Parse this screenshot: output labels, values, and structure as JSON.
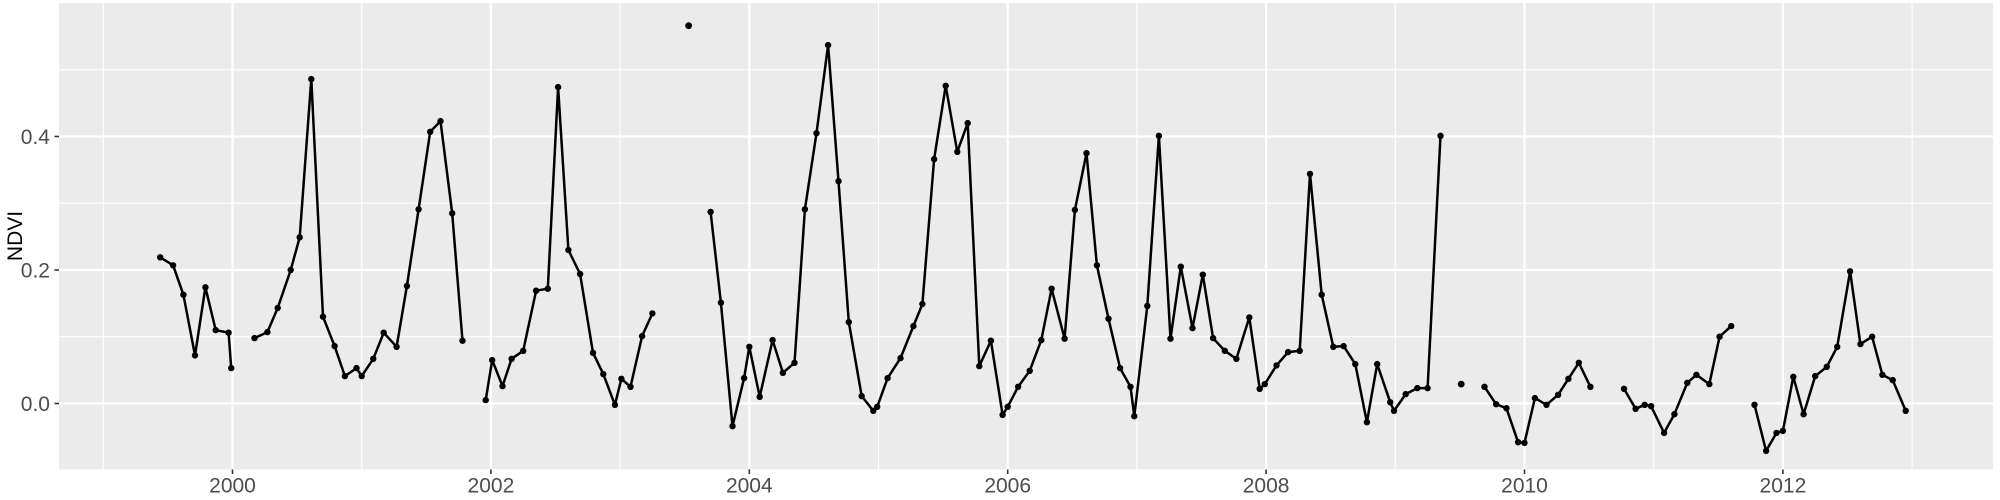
{
  "chart_data": {
    "type": "line",
    "title": "",
    "xlabel": "",
    "ylabel": "NDVI",
    "x_tick_labels": [
      "2000",
      "2002",
      "2004",
      "2006",
      "2008",
      "2010",
      "2012"
    ],
    "x_tick_values": [
      2000,
      2002,
      2004,
      2006,
      2008,
      2010,
      2012
    ],
    "x_minor_values": [
      1999,
      2001,
      2003,
      2005,
      2007,
      2009,
      2011,
      2013
    ],
    "y_tick_labels": [
      "0.0",
      "0.2",
      "0.4"
    ],
    "y_tick_values": [
      0.0,
      0.2,
      0.4
    ],
    "y_minor_values": [
      0.1,
      0.3,
      0.5
    ],
    "xlim": [
      1998.657,
      2013.626
    ],
    "ylim": [
      -0.0989,
      0.6
    ],
    "grid": true,
    "legend_position": "none",
    "point_shape": "circle",
    "series": [
      {
        "name": "NDVI",
        "segments": [
          [
            [
              1999.44,
              0.219
            ],
            [
              1999.54,
              0.207
            ],
            [
              1999.62,
              0.163
            ],
            [
              1999.71,
              0.072
            ],
            [
              1999.79,
              0.174
            ],
            [
              1999.87,
              0.11
            ],
            [
              1999.97,
              0.106
            ],
            [
              1999.99,
              0.053
            ]
          ],
          [
            [
              2000.17,
              0.098
            ],
            [
              2000.27,
              0.107
            ],
            [
              2000.35,
              0.143
            ],
            [
              2000.45,
              0.2
            ],
            [
              2000.52,
              0.249
            ],
            [
              2000.61,
              0.486
            ],
            [
              2000.7,
              0.13
            ],
            [
              2000.79,
              0.086
            ],
            [
              2000.87,
              0.041
            ],
            [
              2000.96,
              0.053
            ],
            [
              2001.0,
              0.041
            ],
            [
              2001.09,
              0.067
            ],
            [
              2001.17,
              0.106
            ],
            [
              2001.27,
              0.085
            ],
            [
              2001.35,
              0.176
            ],
            [
              2001.44,
              0.291
            ],
            [
              2001.53,
              0.407
            ],
            [
              2001.61,
              0.423
            ],
            [
              2001.7,
              0.285
            ],
            [
              2001.78,
              0.094
            ]
          ],
          [
            [
              2001.96,
              0.005
            ],
            [
              2002.01,
              0.065
            ],
            [
              2002.09,
              0.026
            ],
            [
              2002.16,
              0.067
            ],
            [
              2002.25,
              0.079
            ],
            [
              2002.35,
              0.169
            ],
            [
              2002.44,
              0.172
            ],
            [
              2002.52,
              0.474
            ],
            [
              2002.6,
              0.23
            ],
            [
              2002.69,
              0.194
            ],
            [
              2002.79,
              0.076
            ],
            [
              2002.87,
              0.044
            ],
            [
              2002.96,
              -0.002
            ],
            [
              2003.01,
              0.037
            ],
            [
              2003.08,
              0.025
            ],
            [
              2003.17,
              0.101
            ],
            [
              2003.25,
              0.135
            ]
          ],
          [
            [
              2003.7,
              0.287
            ],
            [
              2003.78,
              0.151
            ],
            [
              2003.87,
              -0.034
            ],
            [
              2003.96,
              0.038
            ],
            [
              2004.0,
              0.085
            ],
            [
              2004.08,
              0.01
            ],
            [
              2004.18,
              0.095
            ],
            [
              2004.26,
              0.046
            ],
            [
              2004.35,
              0.061
            ],
            [
              2004.43,
              0.291
            ],
            [
              2004.52,
              0.405
            ],
            [
              2004.61,
              0.537
            ],
            [
              2004.69,
              0.333
            ],
            [
              2004.77,
              0.122
            ],
            [
              2004.87,
              0.011
            ],
            [
              2004.96,
              -0.011
            ],
            [
              2004.99,
              -0.005
            ],
            [
              2005.07,
              0.038
            ],
            [
              2005.17,
              0.068
            ],
            [
              2005.27,
              0.116
            ],
            [
              2005.34,
              0.149
            ],
            [
              2005.43,
              0.366
            ],
            [
              2005.52,
              0.476
            ],
            [
              2005.61,
              0.377
            ],
            [
              2005.69,
              0.42
            ],
            [
              2005.78,
              0.056
            ],
            [
              2005.87,
              0.094
            ],
            [
              2005.96,
              -0.017
            ],
            [
              2006.0,
              -0.005
            ],
            [
              2006.08,
              0.025
            ],
            [
              2006.17,
              0.049
            ],
            [
              2006.26,
              0.095
            ],
            [
              2006.34,
              0.172
            ],
            [
              2006.44,
              0.097
            ],
            [
              2006.52,
              0.29
            ],
            [
              2006.61,
              0.375
            ],
            [
              2006.69,
              0.207
            ],
            [
              2006.78,
              0.127
            ],
            [
              2006.87,
              0.053
            ],
            [
              2006.95,
              0.025
            ],
            [
              2006.98,
              -0.019
            ],
            [
              2007.08,
              0.146
            ],
            [
              2007.17,
              0.401
            ],
            [
              2007.26,
              0.097
            ],
            [
              2007.34,
              0.205
            ],
            [
              2007.43,
              0.113
            ],
            [
              2007.51,
              0.193
            ],
            [
              2007.59,
              0.098
            ],
            [
              2007.68,
              0.079
            ],
            [
              2007.77,
              0.067
            ],
            [
              2007.87,
              0.129
            ],
            [
              2007.95,
              0.022
            ],
            [
              2007.99,
              0.029
            ],
            [
              2008.08,
              0.057
            ],
            [
              2008.17,
              0.077
            ],
            [
              2008.26,
              0.079
            ],
            [
              2008.34,
              0.344
            ],
            [
              2008.43,
              0.163
            ],
            [
              2008.52,
              0.085
            ],
            [
              2008.6,
              0.086
            ],
            [
              2008.69,
              0.059
            ],
            [
              2008.78,
              -0.028
            ],
            [
              2008.86,
              0.059
            ],
            [
              2008.96,
              0.002
            ],
            [
              2008.99,
              -0.011
            ],
            [
              2009.08,
              0.014
            ],
            [
              2009.17,
              0.023
            ],
            [
              2009.25,
              0.023
            ],
            [
              2009.35,
              0.401
            ]
          ],
          [
            [
              2009.69,
              0.025
            ],
            [
              2009.78,
              -0.001
            ],
            [
              2009.86,
              -0.007
            ],
            [
              2009.95,
              -0.058
            ],
            [
              2010.0,
              -0.059
            ],
            [
              2010.08,
              0.008
            ],
            [
              2010.17,
              -0.002
            ],
            [
              2010.26,
              0.013
            ],
            [
              2010.34,
              0.037
            ],
            [
              2010.42,
              0.061
            ],
            [
              2010.51,
              0.025
            ]
          ],
          [
            [
              2010.77,
              0.022
            ],
            [
              2010.86,
              -0.008
            ],
            [
              2010.93,
              -0.002
            ],
            [
              2010.98,
              -0.004
            ],
            [
              2011.08,
              -0.044
            ],
            [
              2011.16,
              -0.016
            ],
            [
              2011.26,
              0.031
            ],
            [
              2011.33,
              0.043
            ],
            [
              2011.43,
              0.029
            ],
            [
              2011.51,
              0.1
            ],
            [
              2011.6,
              0.116
            ]
          ],
          [
            [
              2011.78,
              -0.002
            ],
            [
              2011.87,
              -0.071
            ],
            [
              2011.95,
              -0.044
            ],
            [
              2012.0,
              -0.041
            ],
            [
              2012.08,
              0.04
            ],
            [
              2012.16,
              -0.016
            ],
            [
              2012.25,
              0.041
            ],
            [
              2012.34,
              0.055
            ],
            [
              2012.42,
              0.085
            ],
            [
              2012.52,
              0.198
            ],
            [
              2012.6,
              0.089
            ],
            [
              2012.69,
              0.1
            ],
            [
              2012.77,
              0.043
            ],
            [
              2012.85,
              0.035
            ],
            [
              2012.95,
              -0.011
            ]
          ]
        ],
        "isolated_points": [
          [
            2003.53,
            0.566
          ],
          [
            2009.51,
            0.029
          ]
        ]
      }
    ]
  },
  "style": {
    "background": "#FFFFFF",
    "panel_bg": "#EBEBEB",
    "grid_color": "#FFFFFF",
    "series_color": "#000000",
    "axis_text_color": "#4D4D4D",
    "axis_title_color": "#000000",
    "tick_mark_color": "#333333"
  }
}
